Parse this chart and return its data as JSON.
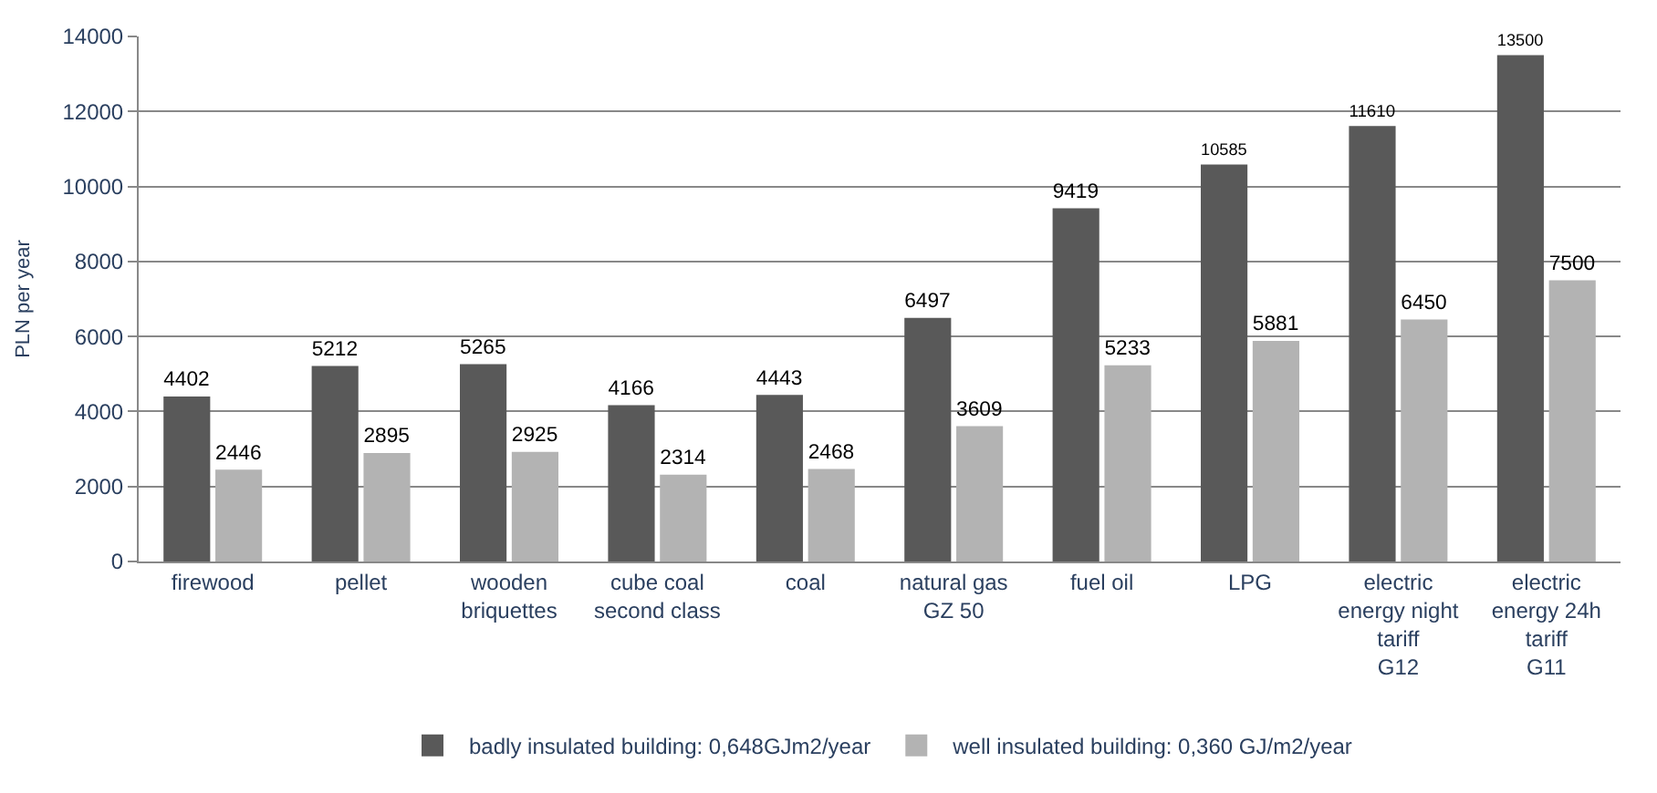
{
  "chart_data": {
    "type": "bar",
    "ylabel": "PLN per year",
    "categories": [
      "firewood",
      "pellet",
      "wooden\nbriquettes",
      "cube coal\nsecond class",
      "coal",
      "natural gas\nGZ 50",
      "fuel oil",
      "LPG",
      "electric\nenergy night\ntariff\nG12",
      "electric\nenergy 24h\ntariff\nG11"
    ],
    "series": [
      {
        "name": "badly insulated building: 0,648GJm2/year",
        "color": "#595959",
        "values": [
          4402,
          5212,
          5265,
          4166,
          4443,
          6497,
          9419,
          10585,
          11610,
          13500
        ]
      },
      {
        "name": "well insulated building: 0,360 GJ/m2/year",
        "color": "#b3b3b3",
        "values": [
          2446,
          2895,
          2925,
          2314,
          2468,
          3609,
          5233,
          5881,
          6450,
          7500
        ]
      }
    ],
    "ylim": [
      0,
      14000
    ],
    "yticks": [
      0,
      2000,
      4000,
      6000,
      8000,
      10000,
      12000,
      14000
    ],
    "grid": "y",
    "legend": "bottom",
    "data_labels": true
  }
}
